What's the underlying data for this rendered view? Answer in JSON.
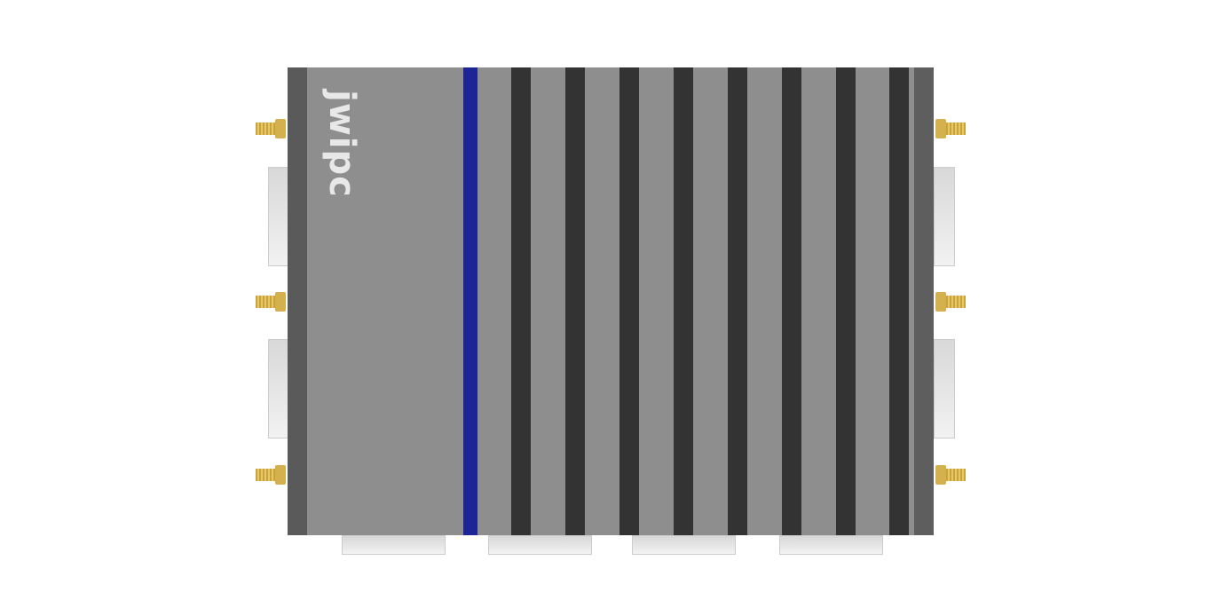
{
  "product": {
    "logo_text": "jwipc",
    "colors": {
      "body": "#8e8e8e",
      "fins": "#333333",
      "accent_stripe": "#1c2496",
      "antenna_connector": "#d4b04e"
    }
  }
}
